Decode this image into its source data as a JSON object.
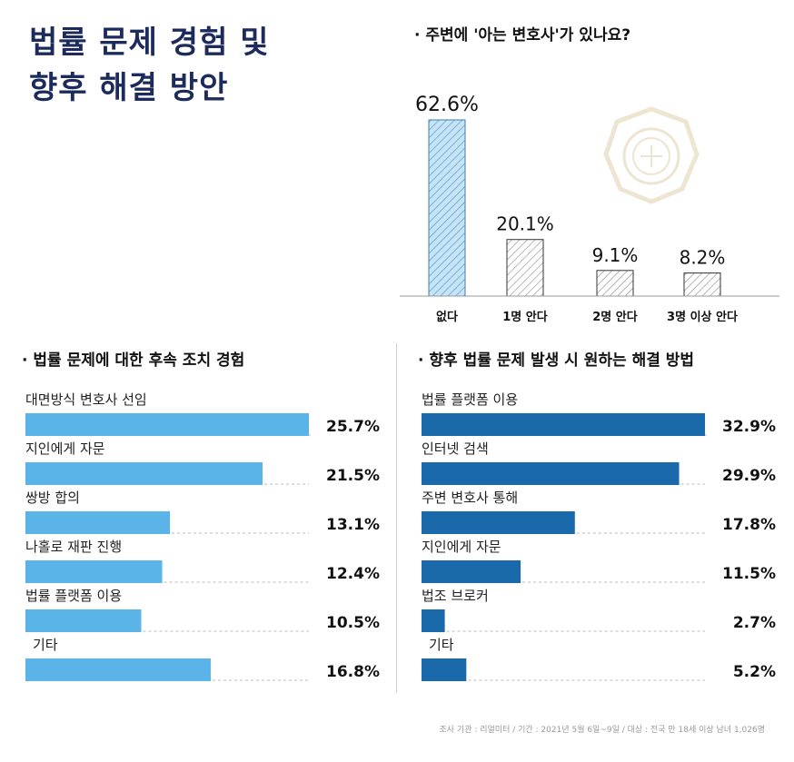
{
  "title_line1": "법률 문제 경험 및",
  "title_line2": "향후 해결 방안",
  "footer": "조사 기관 : 리얼미터 / 기간 : 2021년 5월 6일~9일 / 대상 : 전국 만 18세 이상 남녀 1,026명",
  "colors": {
    "title": "#1c2a5c",
    "light_blue": "#5ab4e8",
    "dark_blue": "#1a6aab",
    "hatch_blue": "#b9dcf2"
  },
  "chart_data": [
    {
      "type": "bar",
      "title": "· 주변에 '아는 변호사'가 있나요?",
      "categories": [
        "없다",
        "1명 안다",
        "2명 안다",
        "3명 이상 안다"
      ],
      "values": [
        62.6,
        20.1,
        9.1,
        8.2
      ],
      "value_labels": [
        "62.6%",
        "20.1%",
        "9.1%",
        "8.2%"
      ],
      "ylim": [
        0,
        62.6
      ]
    },
    {
      "type": "bar",
      "orientation": "horizontal",
      "title": "· 법률 문제에 대한 후속 조치 경험",
      "categories": [
        "대면방식 변호사 선임",
        "지인에게 자문",
        "쌍방 합의",
        "나홀로 재판 진행",
        "법률 플랫폼 이용",
        "기타"
      ],
      "values": [
        25.7,
        21.5,
        13.1,
        12.4,
        10.5,
        16.8
      ],
      "value_labels": [
        "25.7%",
        "21.5%",
        "13.1%",
        "12.4%",
        "10.5%",
        "16.8%"
      ],
      "xlim": [
        0,
        25.7
      ]
    },
    {
      "type": "bar",
      "orientation": "horizontal",
      "title": "· 향후 법률 문제 발생 시 원하는 해결 방법",
      "categories": [
        "법률 플랫폼 이용",
        "인터넷 검색",
        "주변 변호사 통해",
        "지인에게 자문",
        "법조 브로커",
        "기타"
      ],
      "values": [
        32.9,
        29.9,
        17.8,
        11.5,
        2.7,
        5.2
      ],
      "value_labels": [
        "32.9%",
        "29.9%",
        "17.8%",
        "11.5%",
        "2.7%",
        "5.2%"
      ],
      "xlim": [
        0,
        32.9
      ]
    }
  ]
}
